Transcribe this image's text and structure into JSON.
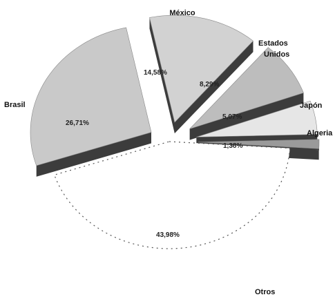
{
  "chart_data": {
    "type": "pie",
    "style": "exploded-3d",
    "title": "",
    "slices": [
      {
        "label": "Brasil",
        "value": 26.71,
        "value_label": "26,71%",
        "color": "#c9c9c9"
      },
      {
        "label": "México",
        "value": 14.58,
        "value_label": "14,58%",
        "color": "#d2d2d2"
      },
      {
        "label": "Estados Unidos",
        "value": 8.29,
        "value_label": "8,29%",
        "color": "#bdbdbd"
      },
      {
        "label": "Japón",
        "value": 5.07,
        "value_label": "5,07%",
        "color": "#e6e6e6"
      },
      {
        "label": "Algeria",
        "value": 1.38,
        "value_label": "1,38%",
        "color": "#9a9a9a"
      },
      {
        "label": "Otros",
        "value": 43.98,
        "value_label": "43,98%",
        "color": "#ffffff"
      }
    ]
  }
}
